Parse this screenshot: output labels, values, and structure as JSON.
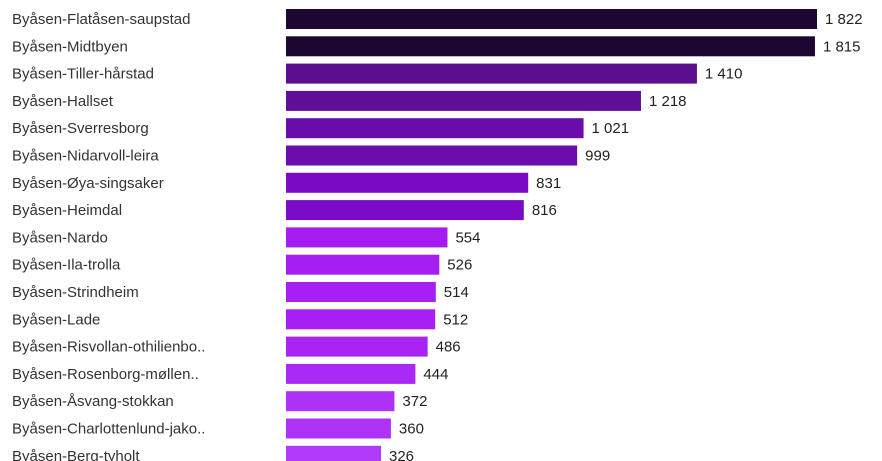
{
  "chart_data": {
    "type": "bar",
    "orientation": "horizontal",
    "title": "",
    "xlabel": "",
    "ylabel": "",
    "grid": false,
    "categories": [
      "Byåsen-Flatåsen-saupstad",
      "Byåsen-Midtbyen",
      "Byåsen-Tiller-hårstad",
      "Byåsen-Hallset",
      "Byåsen-Sverresborg",
      "Byåsen-Nidarvoll-leira",
      "Byåsen-Øya-singsaker",
      "Byåsen-Heimdal",
      "Byåsen-Nardo",
      "Byåsen-Ila-trolla",
      "Byåsen-Strindheim",
      "Byåsen-Lade",
      "Byåsen-Risvollan-othilienbo..",
      "Byåsen-Rosenborg-møllen..",
      "Byåsen-Åsvang-stokkan",
      "Byåsen-Charlottenlund-jako..",
      "Byåsen-Berg-tyholt"
    ],
    "values": [
      1822,
      1815,
      1410,
      1218,
      1021,
      999,
      831,
      816,
      554,
      526,
      514,
      512,
      486,
      444,
      372,
      360,
      326
    ],
    "value_labels": [
      "1 822",
      "1 815",
      "1 410",
      "1 218",
      "1 021",
      "999",
      "831",
      "816",
      "554",
      "526",
      "514",
      "512",
      "486",
      "444",
      "372",
      "360",
      "326"
    ],
    "colors": [
      "#1e0632",
      "#1e0632",
      "#5a0f8f",
      "#5f0f97",
      "#6a0ca9",
      "#6c0cac",
      "#7a0bc4",
      "#7b0bc6",
      "#a41cf2",
      "#a51ef2",
      "#a620f3",
      "#a620f3",
      "#a724f4",
      "#a92af5",
      "#ad31f6",
      "#ae33f6",
      "#b03af7"
    ]
  }
}
